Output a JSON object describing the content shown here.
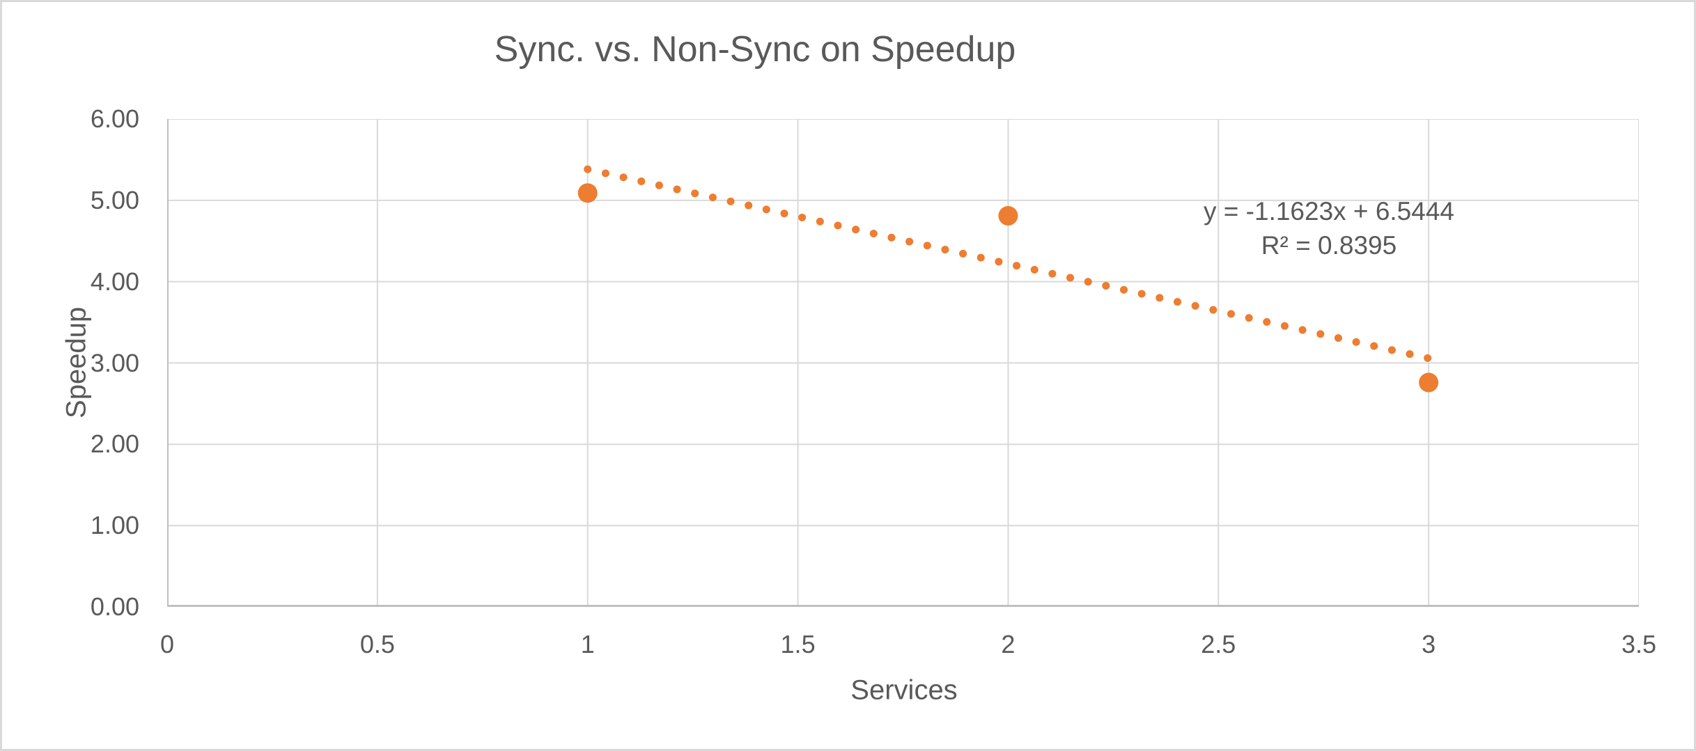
{
  "chart_data": {
    "type": "scatter",
    "title": "Sync. vs. Non-Sync on Speedup",
    "xlabel": "Services",
    "ylabel": "Speedup",
    "xlim": [
      0,
      3.5
    ],
    "ylim": [
      0,
      6
    ],
    "x_ticks": [
      0,
      0.5,
      1,
      1.5,
      2,
      2.5,
      3,
      3.5
    ],
    "x_tick_labels": [
      "0",
      "0.5",
      "1",
      "1.5",
      "2",
      "2.5",
      "3",
      "3.5"
    ],
    "y_ticks": [
      0,
      1,
      2,
      3,
      4,
      5,
      6
    ],
    "y_tick_labels": [
      "0.00",
      "1.00",
      "2.00",
      "3.00",
      "4.00",
      "5.00",
      "6.00"
    ],
    "grid": true,
    "legend": "none",
    "series": [
      {
        "name": "Speedup",
        "color": "#ED7D31",
        "marker": "circle",
        "points": [
          {
            "x": 1,
            "y": 5.09
          },
          {
            "x": 2,
            "y": 4.81
          },
          {
            "x": 3,
            "y": 2.76
          }
        ]
      }
    ],
    "trendline": {
      "type": "linear",
      "style": "dotted",
      "color": "#ED7D31",
      "slope": -1.1623,
      "intercept": 6.5444,
      "x_start": 1,
      "x_end": 3,
      "equation_label": "y = -1.1623x + 6.5444",
      "r_squared_label": "R² = 0.8395"
    }
  },
  "colors": {
    "accent_orange": "#ED7D31",
    "text_gray": "#595959",
    "gridline": "#D9D9D9",
    "axis_line": "#BFBFBF",
    "background": "#FFFFFF",
    "frame_border": "#D9D9D9"
  }
}
